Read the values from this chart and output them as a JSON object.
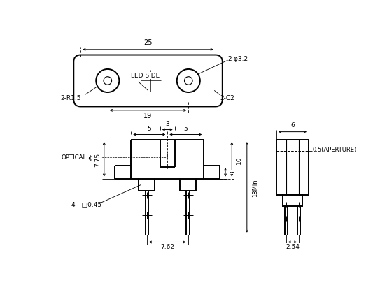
{
  "bg_color": "#ffffff",
  "line_color": "#000000",
  "figsize": [
    5.6,
    4.06
  ],
  "dpi": 100,
  "annotations": {
    "label_25": "25",
    "label_19": "19",
    "label_LED_SIDE": "LED SIDE",
    "label_2R15": "2-R1.5",
    "label_2C2": "2-C2",
    "label_2phi32": "2-φ3.2",
    "optical_CL": "OPTICAL",
    "dim_5L": "5",
    "dim_5R": "5",
    "dim_3top": "3",
    "dim_10": "10",
    "dim_3b": "3",
    "dim_775": "7.75",
    "dim_18min": "18Min",
    "dim_762": "7.62",
    "dim_4sq045": "4 - □0.45",
    "dim_6": "6",
    "dim_05ap": "0.5(APERTURE)",
    "dim_254": "2.54"
  }
}
